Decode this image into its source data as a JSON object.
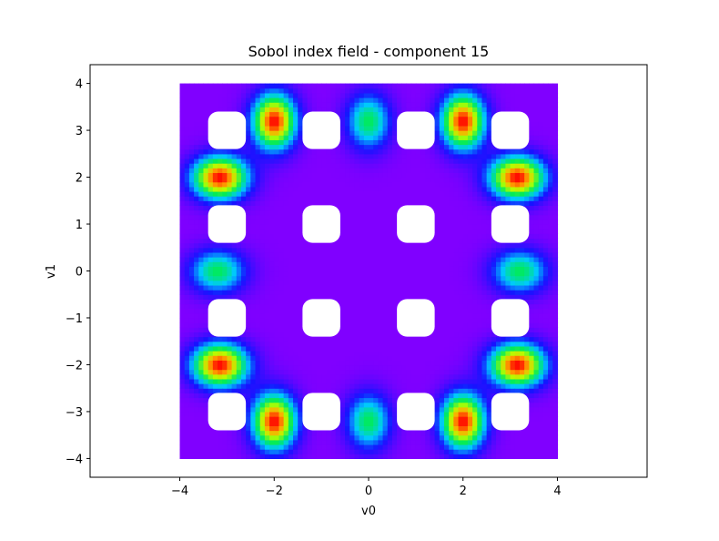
{
  "chart_data": {
    "type": "heatmap",
    "title": "Sobol index field - component 15",
    "xlabel": "v0",
    "ylabel": "v1",
    "xlim": [
      -5.9,
      5.9
    ],
    "ylim": [
      -4.4,
      4.4
    ],
    "data_extent": {
      "x": [
        -4,
        4
      ],
      "y": [
        -4,
        4
      ]
    },
    "xticks": [
      -4,
      -2,
      0,
      2,
      4
    ],
    "yticks": [
      -4,
      -3,
      -2,
      -1,
      0,
      1,
      2,
      3,
      4
    ],
    "xtick_labels": [
      "−4",
      "−2",
      "0",
      "2",
      "4"
    ],
    "ytick_labels": [
      "−4",
      "−3",
      "−2",
      "−1",
      "0",
      "1",
      "2",
      "3",
      "4"
    ],
    "colormap": "gist_rainbow (purple = low, red = high)",
    "grid": false,
    "legend": "none",
    "holes": {
      "description": "white rounded-square gaps (no data) on a 4x4 lattice",
      "centers_x": [
        -3,
        -1,
        1,
        3
      ],
      "centers_y": [
        -3,
        -1,
        1,
        3
      ],
      "half_width": 0.4
    },
    "hotspots": [
      {
        "x": -3.15,
        "y": 2.0,
        "value": 1.0
      },
      {
        "x": 3.15,
        "y": 2.0,
        "value": 1.0
      },
      {
        "x": -3.15,
        "y": -2.0,
        "value": 1.0
      },
      {
        "x": 3.15,
        "y": -2.0,
        "value": 1.0
      },
      {
        "x": -2.0,
        "y": 3.2,
        "value": 1.0
      },
      {
        "x": 2.0,
        "y": 3.2,
        "value": 1.0
      },
      {
        "x": -2.0,
        "y": -3.2,
        "value": 1.0
      },
      {
        "x": 2.0,
        "y": -3.2,
        "value": 1.0
      },
      {
        "x": 0.0,
        "y": 3.2,
        "value": 0.55
      },
      {
        "x": 0.0,
        "y": -3.2,
        "value": 0.55
      },
      {
        "x": -3.2,
        "y": 0.0,
        "value": 0.55
      },
      {
        "x": 3.2,
        "y": 0.0,
        "value": 0.55
      }
    ],
    "background_value": 0.0
  }
}
